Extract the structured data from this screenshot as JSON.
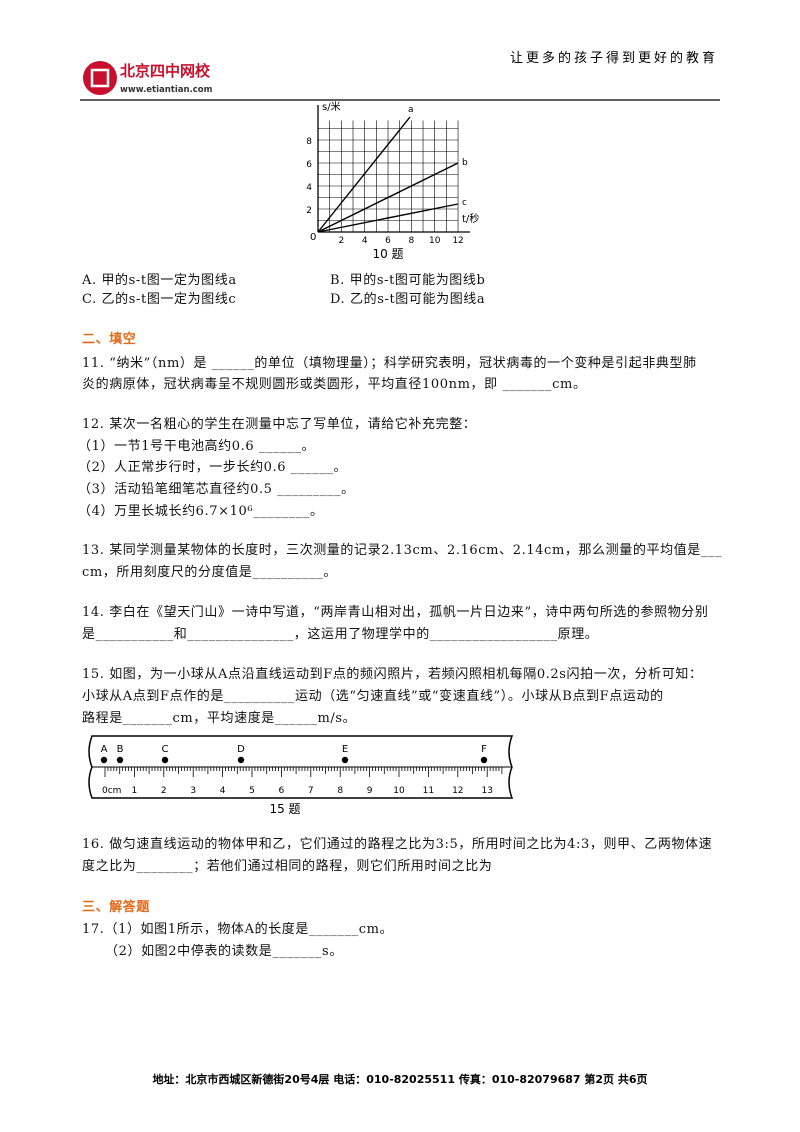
{
  "header": {
    "logo_name": "北京四中网校",
    "logo_url": "www.etiantian.com",
    "slogan": "让更多的孩子得到更好的教育"
  },
  "figure10": {
    "y_label": "s/米",
    "x_label": "t/秒",
    "origin": "0",
    "yticks": [
      "2",
      "4",
      "6",
      "8"
    ],
    "xticks": [
      "2",
      "4",
      "6",
      "8",
      "10",
      "12"
    ],
    "lines": [
      "a",
      "b",
      "c"
    ],
    "caption": "10 题"
  },
  "options": [
    "A. 甲的s-t图一定为图线a",
    "B. 甲的s-t图可能为图线b",
    "C. 乙的s-t图一定为图线c",
    "D. 乙的s-t图可能为图线a"
  ],
  "section2": "二、填空",
  "q11": [
    "11. “纳米”（nm）是 ______的单位（填物理量）；科学研究表明，冠状病毒的一个变种是引起非典型肺",
    "炎的病原体，冠状病毒呈不规则圆形或类圆形，平均直径100nm，即 _______cm。"
  ],
  "q12": [
    "12. 某次一名粗心的学生在测量中忘了写单位，请给它补充完整：",
    "（1）一节1号干电池高约0.6 ______。",
    "（2）人正常步行时，一步长约0.6 ______。",
    "（3）活动铅笔细笔芯直径约0.5 _________。",
    "（4）万里长城长约6.7×10⁶________。"
  ],
  "q13": [
    "13. 某同学测量某物体的长度时，三次测量的记录2.13cm、2.16cm、2.14cm，那么测量的平均值是___",
    "cm，所用刻度尺的分度值是__________。"
  ],
  "q14": [
    "14. 李白在《望天门山》一诗中写道，“两岸青山相对出，孤帆一片日边来”，诗中两句所选的参照物分别",
    "是___________和_______________，这运用了物理学中的__________________原理。"
  ],
  "q15": [
    "15. 如图，为一小球从A点沿直线运动到F点的频闪照片，若频闪照相机每隔0.2s闪拍一次，分析可知：",
    "小球从A点到F点作的是__________运动（选“匀速直线”或“变速直线”）。小球从B点到F点运动的",
    "路程是_______cm，平均速度是______m/s。"
  ],
  "figure15": {
    "points": [
      "A",
      "B",
      "C",
      "D",
      "E",
      "F"
    ],
    "numbers": [
      "0cm",
      "1",
      "2",
      "3",
      "4",
      "5",
      "6",
      "7",
      "8",
      "9",
      "10",
      "11",
      "12",
      "13"
    ],
    "caption": "15 题"
  },
  "q16": [
    "16. 做匀速直线运动的物体甲和乙，它们通过的路程之比为3:5，所用时间之比为4:3，则甲、乙两物体速",
    "度之比为________；若他们通过相同的路程，则它们所用时间之比为"
  ],
  "section3": "三、解答题",
  "q17": [
    "17.（1）如图1所示，物体A的长度是_______cm。",
    "（2）如图2中停表的读数是_______s。"
  ],
  "footer": "地址：北京市西城区新德街20号4层  电话：010-82025511  传真：010-82079687   第2页  共6页"
}
